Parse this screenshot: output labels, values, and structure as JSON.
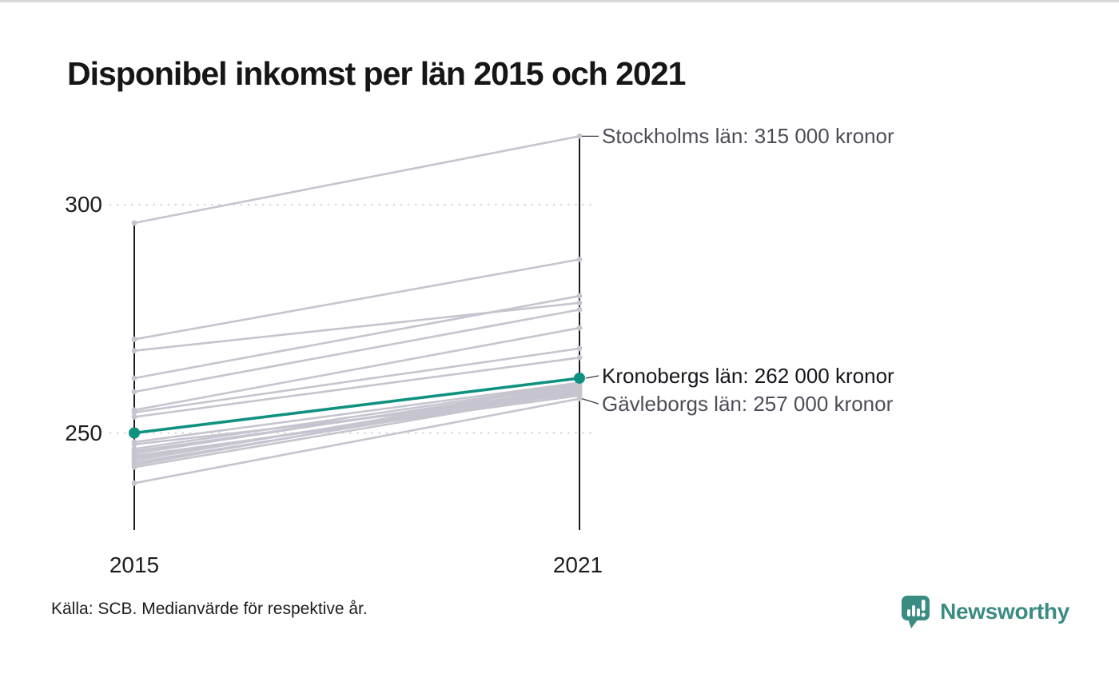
{
  "title": "Disponibel inkomst per län 2015 och 2021",
  "source": "Källa: SCB. Medianvärde för respektive år.",
  "logo": {
    "text": "Newsworthy"
  },
  "colors": {
    "highlight": "#0F9180",
    "line_gray": "#C6C4CE",
    "axis_black": "#1A1A1A",
    "grid_gray": "#D9D9DD",
    "annotation_gray": "#4D4D58",
    "annotation_dark": "#16161C",
    "logo_teal": "#3A8C83"
  },
  "chart_data": {
    "type": "line",
    "subtype": "slope-chart",
    "x": [
      "2015",
      "2021"
    ],
    "xticks": [
      "2015",
      "2021"
    ],
    "yticks": [
      {
        "value": 300,
        "label": "300"
      },
      {
        "value": 250,
        "label": "250"
      }
    ],
    "ylabel_unit": "tusen kronor",
    "ylim_drawn": [
      236,
      318
    ],
    "grid": "dotted-horizontal",
    "legend": "none",
    "series": [
      {
        "name": "Stockholms län",
        "values": [
          296,
          315
        ],
        "highlight": false,
        "annotated": true
      },
      {
        "values": [
          270.5,
          288
        ]
      },
      {
        "values": [
          268,
          278.5
        ]
      },
      {
        "values": [
          262,
          280
        ]
      },
      {
        "values": [
          259,
          277
        ]
      },
      {
        "values": [
          255,
          273
        ]
      },
      {
        "values": [
          254.5,
          268.5
        ]
      },
      {
        "values": [
          253.5,
          266.5
        ]
      },
      {
        "name": "Kronobergs län",
        "values": [
          250,
          262
        ],
        "highlight": true,
        "annotated": true
      },
      {
        "values": [
          248,
          261
        ]
      },
      {
        "values": [
          247.5,
          258.5
        ]
      },
      {
        "values": [
          246.5,
          260.8
        ]
      },
      {
        "values": [
          246,
          259.8
        ]
      },
      {
        "values": [
          245.5,
          260.5
        ]
      },
      {
        "values": [
          245,
          258.2
        ]
      },
      {
        "values": [
          244.5,
          259.5
        ]
      },
      {
        "values": [
          244,
          260.2
        ]
      },
      {
        "values": [
          243.5,
          259.2
        ]
      },
      {
        "values": [
          243,
          260
        ]
      },
      {
        "values": [
          242.5,
          259
        ]
      },
      {
        "name": "Gävleborgs län",
        "values": [
          239,
          257.5
        ],
        "highlight": false,
        "annotated": true
      }
    ],
    "annotations": [
      {
        "series": "Stockholms län",
        "text": "Stockholms län: 315 000 kronor",
        "emphasis": false
      },
      {
        "series": "Kronobergs län",
        "text": "Kronobergs län: 262 000 kronor",
        "emphasis": true
      },
      {
        "series": "Gävleborgs län",
        "text": "Gävleborgs län: 257 000 kronor",
        "emphasis": false
      }
    ]
  }
}
